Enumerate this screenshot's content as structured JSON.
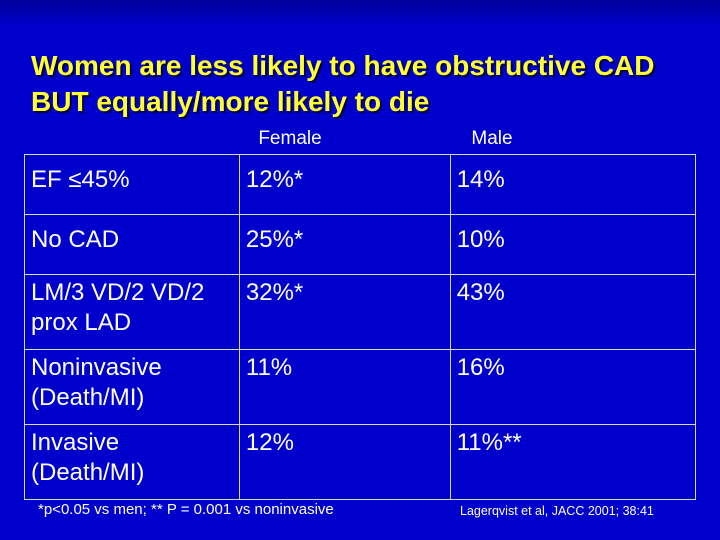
{
  "title": "Women are less likely to have obstructive CAD BUT equally/more likely to die",
  "columns": {
    "female": "Female",
    "male": "Male"
  },
  "rows": [
    {
      "label": "EF ≤45%",
      "female": "12%*",
      "male": "14%"
    },
    {
      "label": "No CAD",
      "female": "25%*",
      "male": "10%"
    },
    {
      "label": "LM/3 VD/2 VD/2 prox LAD",
      "female": "32%*",
      "male": "43%"
    },
    {
      "label": "Noninvasive (Death/MI)",
      "female": "11%",
      "male": "16%"
    },
    {
      "label": "Invasive (Death/MI)",
      "female": "12%",
      "male": "11%**"
    }
  ],
  "footnote": "*p<0.05 vs men; ** P = 0.001 vs noninvasive",
  "citation": "Lagerqvist et al, JACC 2001; 38:41",
  "colors": {
    "background": "#0000cc",
    "title": "#ffff33",
    "text": "#ffffff",
    "grid": "#d8d8d8"
  }
}
